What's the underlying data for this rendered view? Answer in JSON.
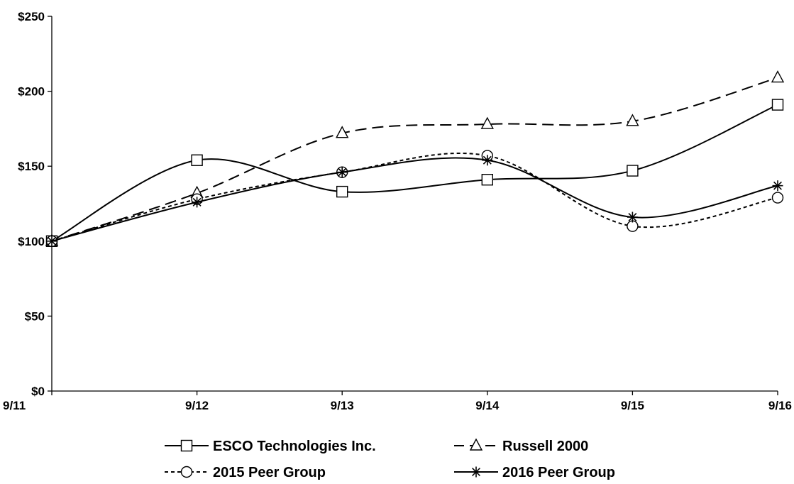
{
  "chart_data": {
    "type": "line",
    "title": "",
    "xlabel": "",
    "ylabel": "",
    "categories": [
      "9/11",
      "9/12",
      "9/13",
      "9/14",
      "9/15",
      "9/16"
    ],
    "y_ticks": [
      "$0",
      "$50",
      "$100",
      "$150",
      "$200",
      "$250"
    ],
    "ylim": [
      0,
      250
    ],
    "grid": false,
    "legend_position": "bottom",
    "series": [
      {
        "name": "ESCO Technologies Inc.",
        "marker": "square",
        "dash": "solid",
        "values": [
          100,
          154,
          133,
          141,
          147,
          191
        ]
      },
      {
        "name": "Russell 2000",
        "marker": "triangle",
        "dash": "long-dash",
        "values": [
          100,
          132,
          172,
          178,
          180,
          209
        ]
      },
      {
        "name": "2015 Peer Group",
        "marker": "circle",
        "dash": "short-dash",
        "values": [
          100,
          128,
          146,
          157,
          110,
          129
        ]
      },
      {
        "name": "2016 Peer Group",
        "marker": "asterisk",
        "dash": "solid",
        "values": [
          100,
          126,
          146,
          154,
          116,
          137
        ]
      }
    ]
  }
}
